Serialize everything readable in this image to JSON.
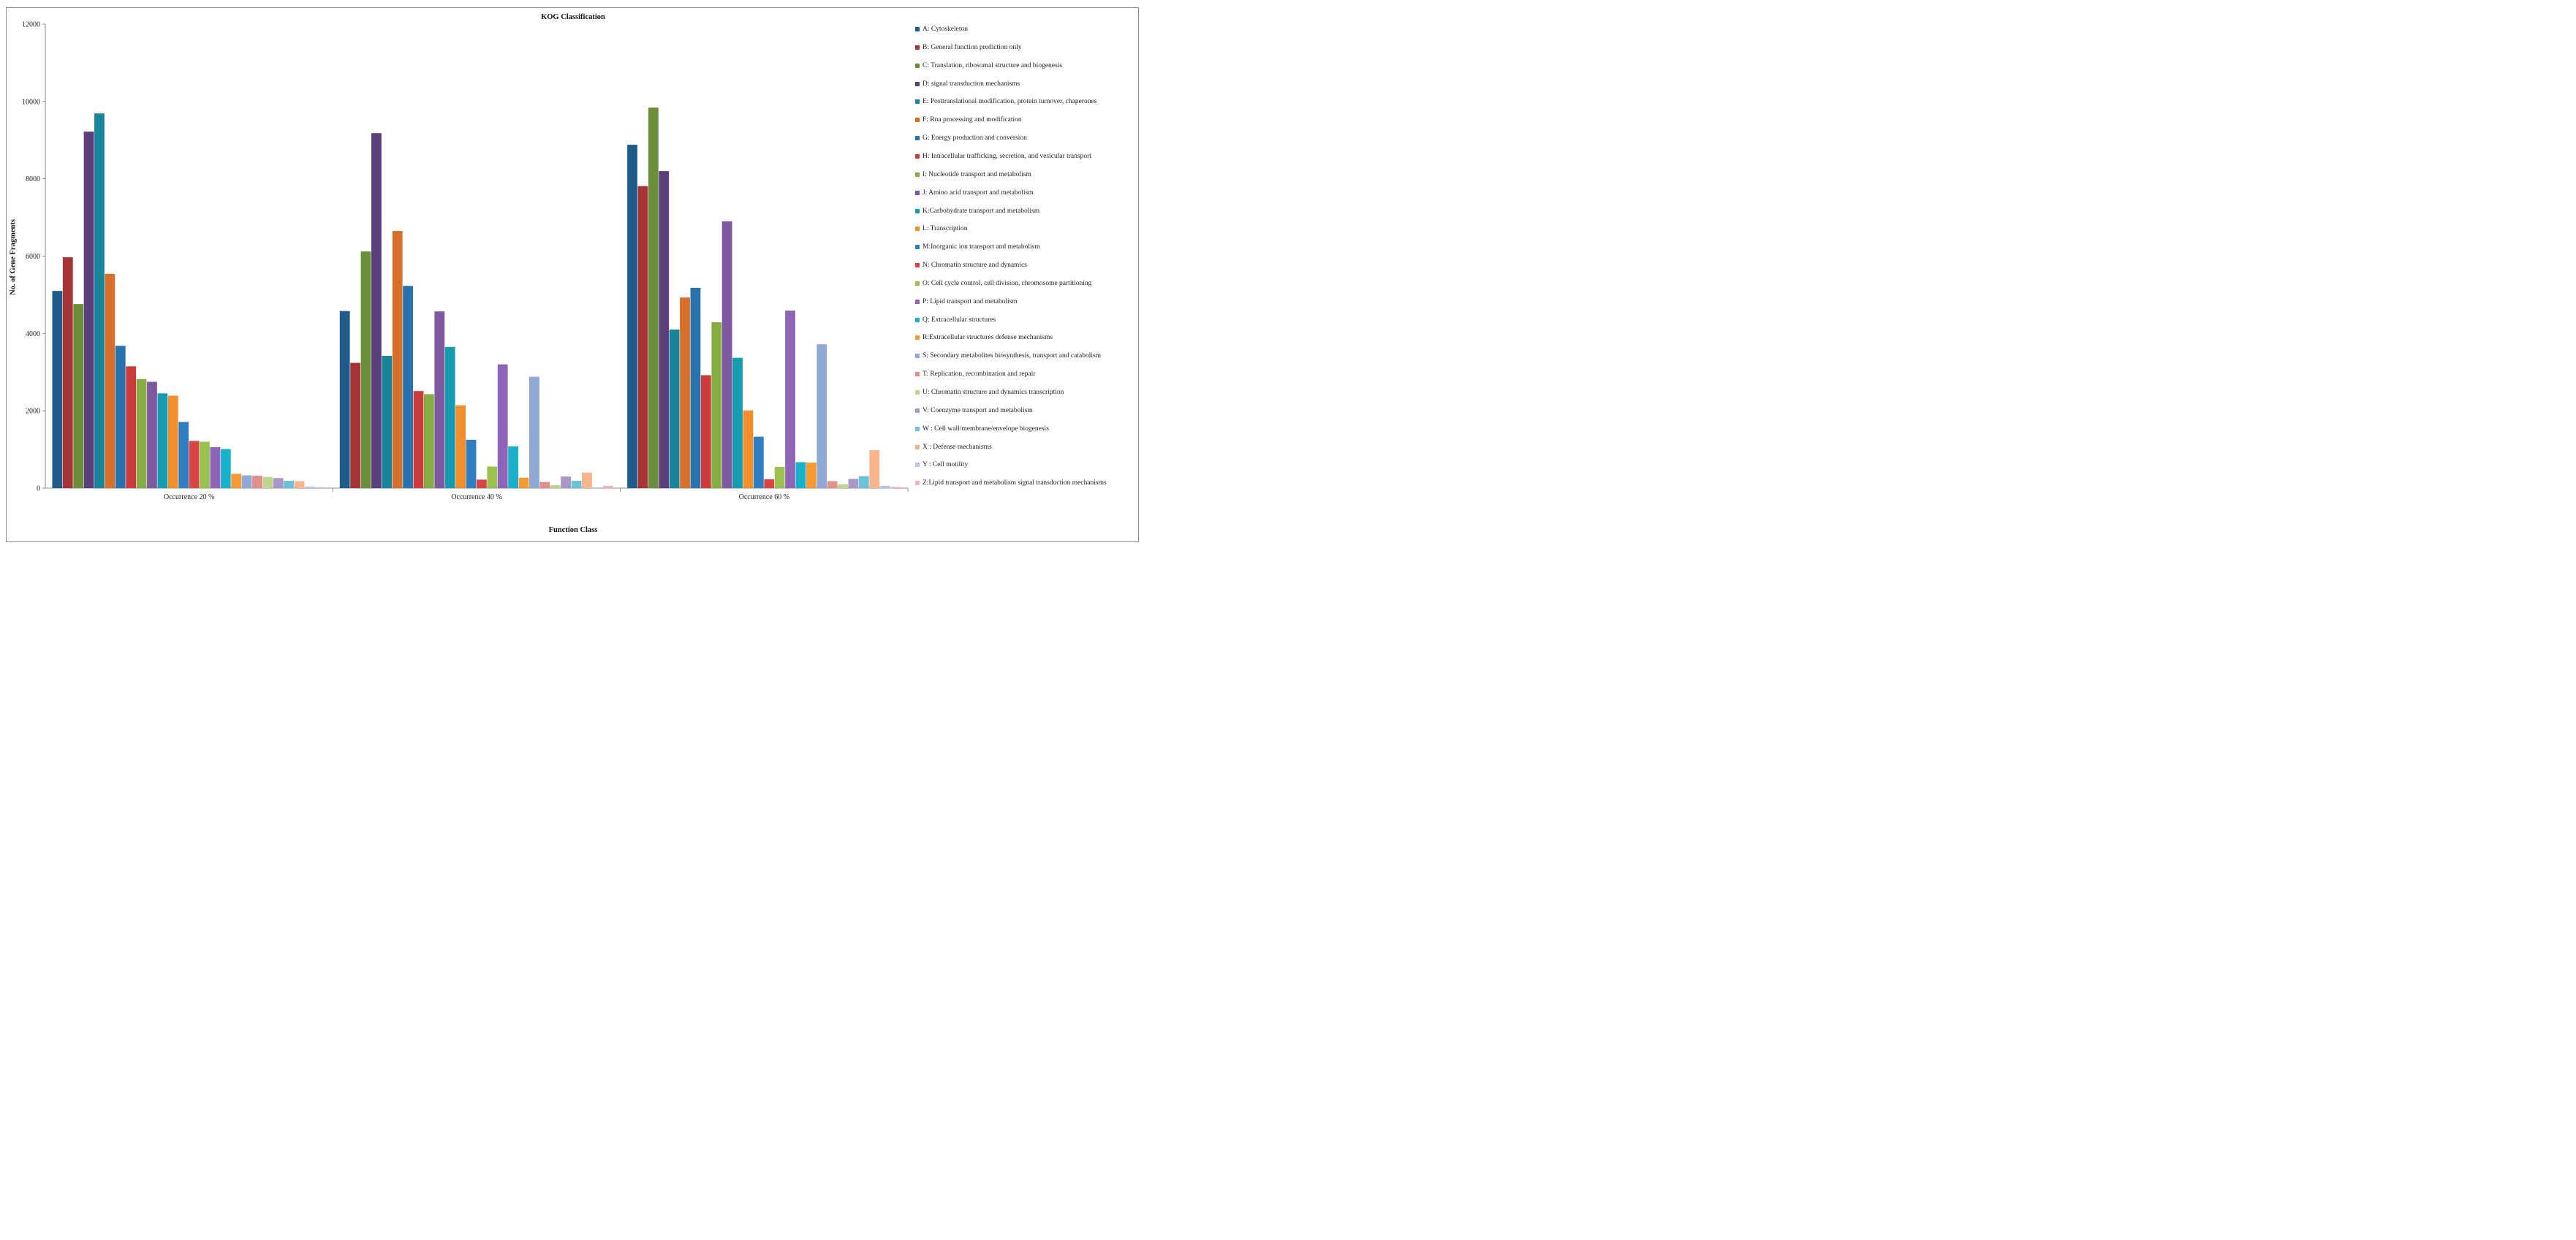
{
  "chart_data": {
    "type": "bar",
    "title": "KOG Classification",
    "xlabel": "Function Class",
    "ylabel": "No. of Gene Fragments",
    "ylim": [
      0,
      12000
    ],
    "yticks": [
      0,
      2000,
      4000,
      6000,
      8000,
      10000,
      12000
    ],
    "grid": false,
    "legend_position": "right",
    "categories": [
      "Occurrence 20 %",
      "Occurrence 40 %",
      "Occurrence 60 %"
    ],
    "series": [
      {
        "name": "A: Cytoskeleton",
        "color": "#1f5c8c",
        "values": [
          5100,
          4580,
          8880
        ]
      },
      {
        "name": "B: General function prediction only",
        "color": "#a73337",
        "values": [
          5970,
          3240,
          7810
        ]
      },
      {
        "name": "C: Translation, ribosomal structure and biogenesis",
        "color": "#6b8e3a",
        "values": [
          4760,
          6120,
          9840
        ]
      },
      {
        "name": "D: signal transduction mechanisms",
        "color": "#5b3f7a",
        "values": [
          9220,
          9180,
          8200
        ]
      },
      {
        "name": "E: Posttranslational modification, protein turnover, chaperones",
        "color": "#19859a",
        "values": [
          9690,
          3420,
          4100
        ]
      },
      {
        "name": "F: Rna processing and modification",
        "color": "#d56f2b",
        "values": [
          5540,
          6650,
          4930
        ]
      },
      {
        "name": "G: Energy production and conversion",
        "color": "#2872ad",
        "values": [
          3680,
          5230,
          5180
        ]
      },
      {
        "name": "H: Intracellular trafficking, secretion, and vesicular transport",
        "color": "#cb3b3b",
        "values": [
          3150,
          2510,
          2920
        ]
      },
      {
        "name": "I: Nucleotide transport and metabolism",
        "color": "#86ad43",
        "values": [
          2820,
          2430,
          4290
        ]
      },
      {
        "name": "J: Amino acid transport and metabolism",
        "color": "#7d59a0",
        "values": [
          2750,
          4570,
          6900
        ]
      },
      {
        "name": "K:Carbohydrate transport and metabolism",
        "color": "#159cb0",
        "values": [
          2450,
          3650,
          3370
        ]
      },
      {
        "name": "L: Transcription",
        "color": "#f28e2b",
        "values": [
          2390,
          2140,
          2010
        ]
      },
      {
        "name": "M:Inorganic ion transport and metabolism",
        "color": "#2f7ec2",
        "values": [
          1710,
          1250,
          1330
        ]
      },
      {
        "name": "N: Chromatin structure and dynamics",
        "color": "#d94545",
        "values": [
          1220,
          220,
          230
        ]
      },
      {
        "name": "O: Cell cycle control, cell division, chromosome partitioning",
        "color": "#9bc24f",
        "values": [
          1200,
          560,
          550
        ]
      },
      {
        "name": "P: Lipid transport and metabolism",
        "color": "#8f63b8",
        "values": [
          1060,
          3200,
          4590
        ]
      },
      {
        "name": "Q: Extracellular structures",
        "color": "#17b1cc",
        "values": [
          1010,
          1080,
          670
        ]
      },
      {
        "name": "R:Extracellular structures defense mechanisms",
        "color": "#f79a33",
        "values": [
          370,
          270,
          660
        ]
      },
      {
        "name": "S: Secondary metabolites biosynthesis, transport and catabolism",
        "color": "#8eaad4",
        "values": [
          330,
          2880,
          3720
        ]
      },
      {
        "name": "T: Replication, recombination and repair",
        "color": "#e38f8d",
        "values": [
          320,
          160,
          180
        ]
      },
      {
        "name": "U: Chromatin structure and dynamics transcription",
        "color": "#bcd68f",
        "values": [
          290,
          80,
          100
        ]
      },
      {
        "name": "V: Coenzyme transport and metabolism",
        "color": "#ab96c9",
        "values": [
          260,
          300,
          240
        ]
      },
      {
        "name": "W : Cell wall/membrane/envelope biogenesis",
        "color": "#6cc2d9",
        "values": [
          190,
          190,
          310
        ]
      },
      {
        "name": "X : Defense mechanisms",
        "color": "#f9b48c",
        "values": [
          180,
          400,
          980
        ]
      },
      {
        "name": "Y : Cell motility",
        "color": "#b3c8e6",
        "values": [
          40,
          20,
          60
        ]
      },
      {
        "name": "Z:Lipid transport and metabolism signal transduction mechanisms",
        "color": "#f0b7b5",
        "values": [
          20,
          60,
          30
        ]
      }
    ]
  }
}
